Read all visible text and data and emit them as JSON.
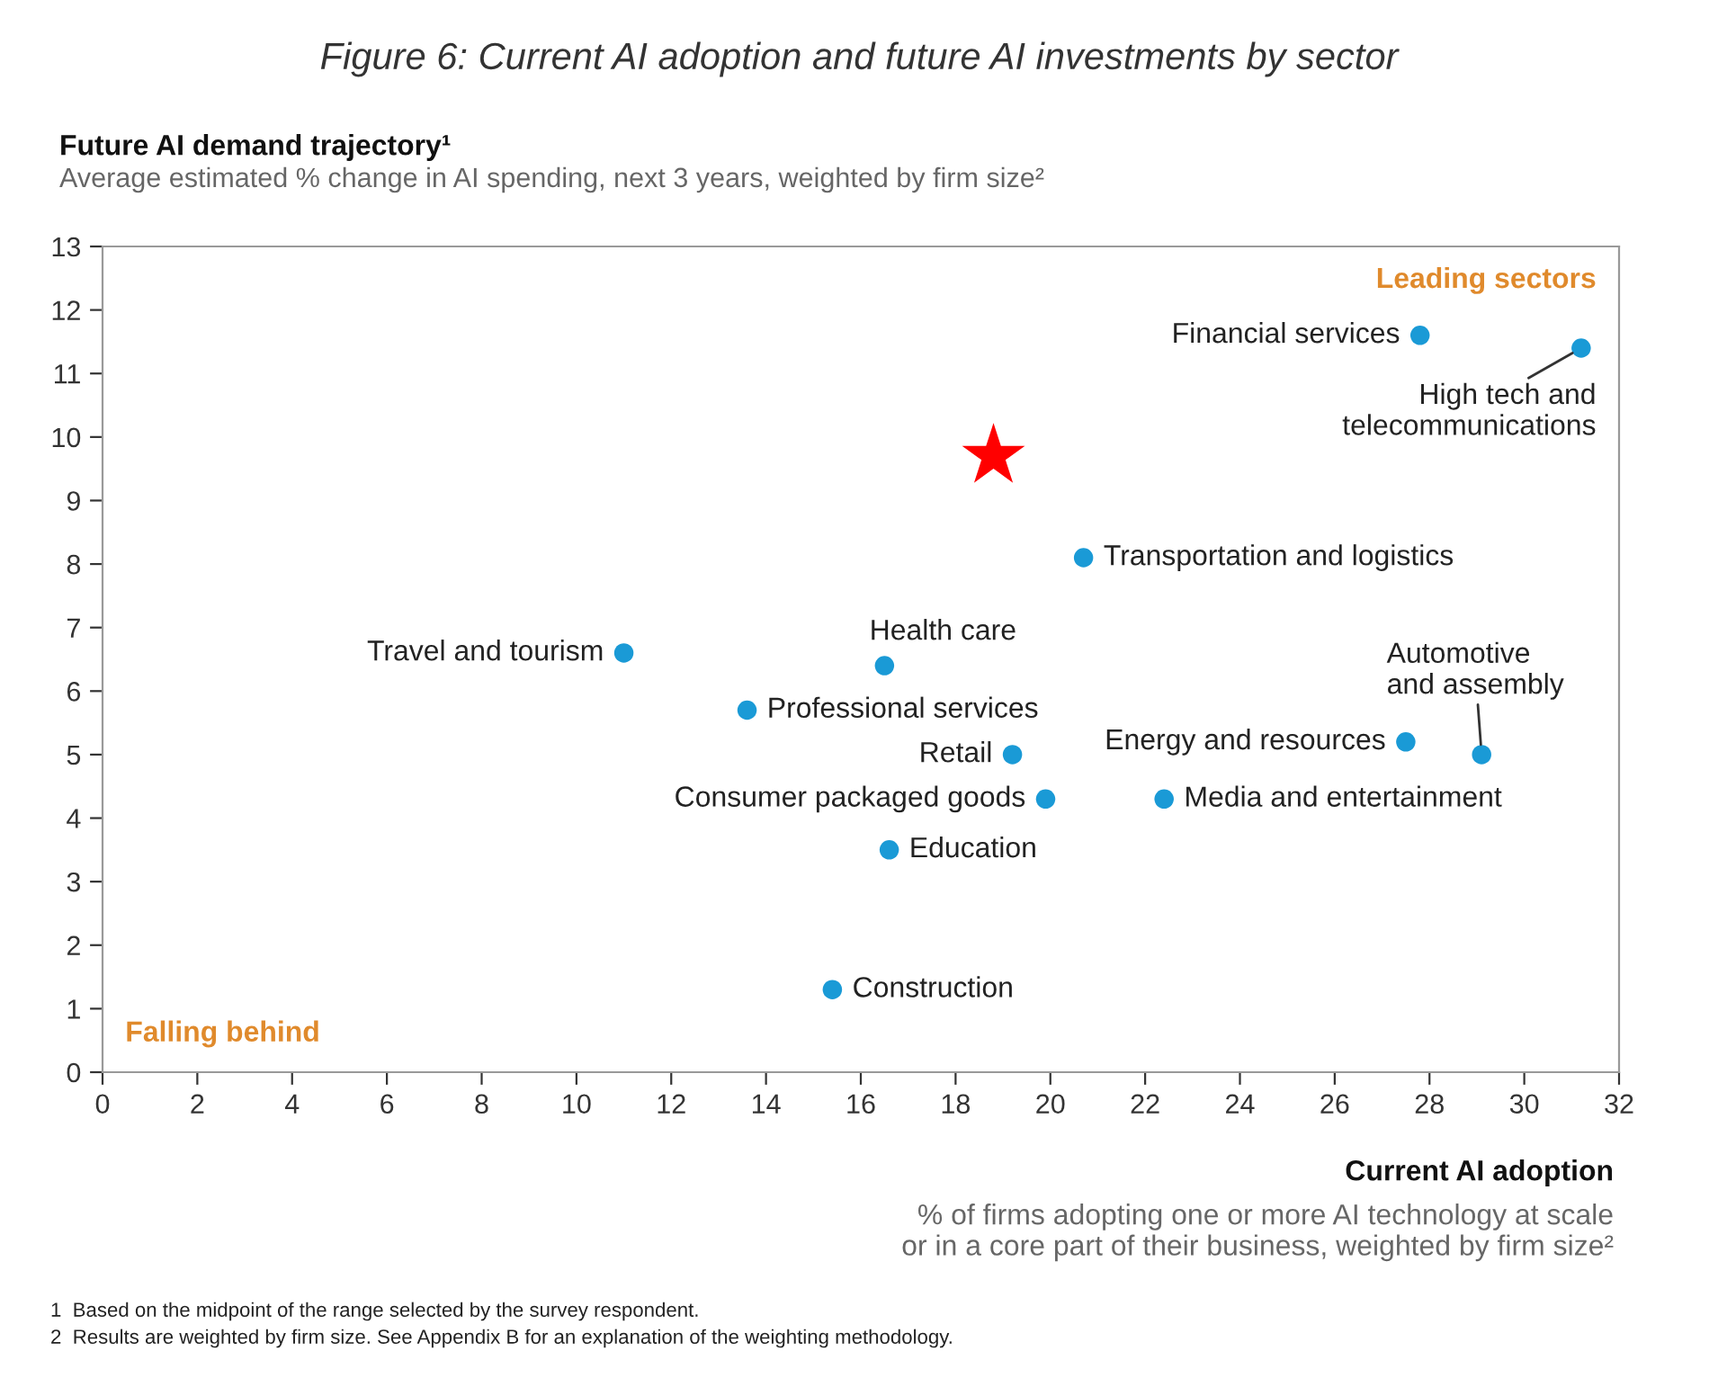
{
  "chart_data": {
    "type": "scatter",
    "title": "Figure 6: Current AI adoption and future AI investments by sector",
    "xlabel": "Current AI adoption",
    "ylabel": "Future AI demand trajectory¹",
    "xlim": [
      0,
      32
    ],
    "xticks": [
      0,
      2,
      4,
      6,
      8,
      10,
      12,
      14,
      16,
      18,
      20,
      22,
      24,
      26,
      28,
      30,
      32
    ],
    "ylim": [
      0,
      13
    ],
    "yticks": [
      0,
      1,
      2,
      3,
      4,
      5,
      6,
      7,
      8,
      9,
      10,
      11,
      12,
      13
    ],
    "grid": false,
    "series": [
      {
        "marker": "circle",
        "color": "#1a9ad6",
        "x": [
          11.0,
          16.5,
          13.6,
          19.2,
          19.9,
          16.6,
          15.4,
          20.7,
          22.4,
          27.5,
          29.1,
          27.8,
          31.2
        ],
        "values": [
          6.6,
          6.4,
          5.7,
          5.0,
          4.3,
          3.5,
          1.3,
          8.1,
          4.3,
          5.2,
          5.0,
          11.6,
          11.4
        ]
      },
      {
        "marker": "star",
        "color": "#ff0000",
        "x": [
          18.8
        ],
        "values": [
          9.7
        ]
      }
    ],
    "annotations": [
      {
        "text": "Travel and tourism",
        "x": 11.0,
        "y": 6.6
      },
      {
        "text": "Health care",
        "x": 16.5,
        "y": 6.4
      },
      {
        "text": "Professional services",
        "x": 13.6,
        "y": 5.7
      },
      {
        "text": "Retail",
        "x": 19.2,
        "y": 5.0
      },
      {
        "text": "Consumer packaged goods",
        "x": 19.9,
        "y": 4.3
      },
      {
        "text": "Education",
        "x": 16.6,
        "y": 3.5
      },
      {
        "text": "Construction",
        "x": 15.4,
        "y": 1.3
      },
      {
        "text": "Transportation and logistics",
        "x": 20.7,
        "y": 8.1
      },
      {
        "text": "Media and entertainment",
        "x": 22.4,
        "y": 4.3
      },
      {
        "text": "Energy and resources",
        "x": 27.5,
        "y": 5.2
      },
      {
        "text": "Automotive\nand assembly",
        "x": 29.1,
        "y": 5.0
      },
      {
        "text": "Financial services",
        "x": 27.8,
        "y": 11.6
      },
      {
        "text": "High tech and\ntelecommunications",
        "x": 31.2,
        "y": 11.4
      },
      "Leading sectors",
      "Falling behind",
      "Average estimated % change in AI spending, next 3 years, weighted by firm size²",
      "% of firms adopting one or more AI technology at scale\nor in a core part of their business, weighted by firm size²",
      "1  Based on the midpoint of the range selected by the survey respondent.",
      "2  Results are weighted by firm size. See Appendix B for an explanation of the weighting methodology."
    ]
  }
}
